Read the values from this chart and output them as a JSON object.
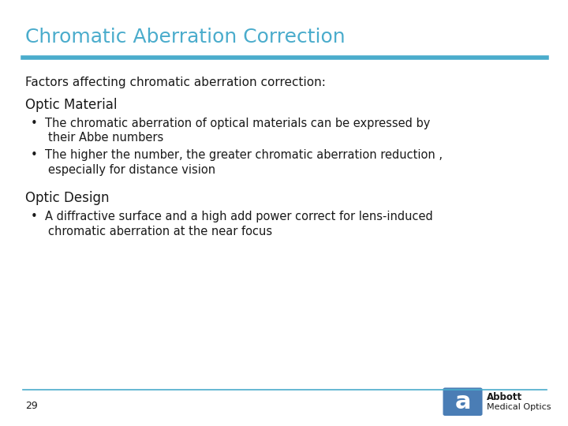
{
  "title": "Chromatic Aberration Correction",
  "title_color": "#4AACCC",
  "background_color": "#FFFFFF",
  "header_line_color": "#4AACCC",
  "bottom_line_color": "#4AACCC",
  "intro_text": "Factors affecting chromatic aberration correction:",
  "section1_header": "Optic Material",
  "section2_header": "Optic Design",
  "bullet1_line1": "The chromatic aberration of optical materials can be expressed by",
  "bullet1_line2": "their Abbe numbers",
  "bullet2_line1": "The higher the number, the greater chromatic aberration reduction ,",
  "bullet2_line2": "especially for distance vision",
  "bullet3_line1": "A diffractive surface and a high add power correct for lens-induced",
  "bullet3_line2": "chromatic aberration at the near focus",
  "page_number": "29",
  "footer_logo_text1": "Abbott",
  "footer_logo_text2": "Medical Optics",
  "logo_box_color": "#4A7DB5",
  "text_color": "#1A1A1A",
  "section_header_color": "#1A1A1A",
  "bullet_char": "•"
}
